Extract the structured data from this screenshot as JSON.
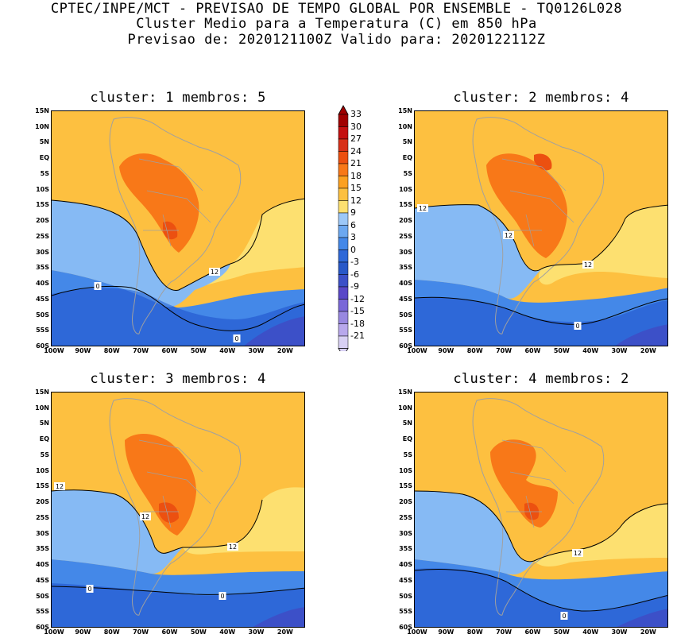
{
  "header": {
    "line1": "CPTEC/INPE/MCT - PREVISAO DE TEMPO GLOBAL POR ENSEMBLE - TQ0126L028",
    "line2": "Cluster Medio para a Temperatura (C) em 850 hPa",
    "line3": "Previsao de: 2020121100Z   Valido para: 2020122112Z"
  },
  "panels": [
    {
      "title": "cluster: 1  membros: 5",
      "contour_labels": [
        "12",
        "0",
        "0"
      ]
    },
    {
      "title": "cluster: 2  membros: 4",
      "contour_labels": [
        "12",
        "12",
        "12",
        "0"
      ]
    },
    {
      "title": "cluster: 3  membros: 4",
      "contour_labels": [
        "12",
        "12",
        "12",
        "0",
        "0"
      ]
    },
    {
      "title": "cluster: 4  membros: 2",
      "contour_labels": [
        "12",
        "0"
      ]
    }
  ],
  "lat_labels": [
    "15N",
    "10N",
    "5N",
    "EQ",
    "5S",
    "10S",
    "15S",
    "20S",
    "25S",
    "30S",
    "35S",
    "40S",
    "45S",
    "50S",
    "55S",
    "60S"
  ],
  "lon_labels": [
    "100W",
    "90W",
    "80W",
    "70W",
    "60W",
    "50W",
    "40W",
    "30W",
    "20W"
  ],
  "colorbar": {
    "labels": [
      "33",
      "30",
      "27",
      "24",
      "21",
      "18",
      "15",
      "12",
      "9",
      "6",
      "3",
      "0",
      "-3",
      "-6",
      "-9",
      "-12",
      "-15",
      "-18",
      "-21"
    ],
    "colors": [
      "#a00000",
      "#c41010",
      "#d83018",
      "#ec5010",
      "#f87818",
      "#fca020",
      "#fdc040",
      "#fde070",
      "#9cc8f8",
      "#6ca8f0",
      "#4488e8",
      "#2e68d8",
      "#2858c8",
      "#3c50c8",
      "#5a48c8",
      "#7a68d8",
      "#9888e0",
      "#b8a8ec",
      "#d8d0f4"
    ]
  },
  "colors": {
    "frame": "#000000",
    "border_lines": "#a0a0a0",
    "contour": "#000000"
  }
}
